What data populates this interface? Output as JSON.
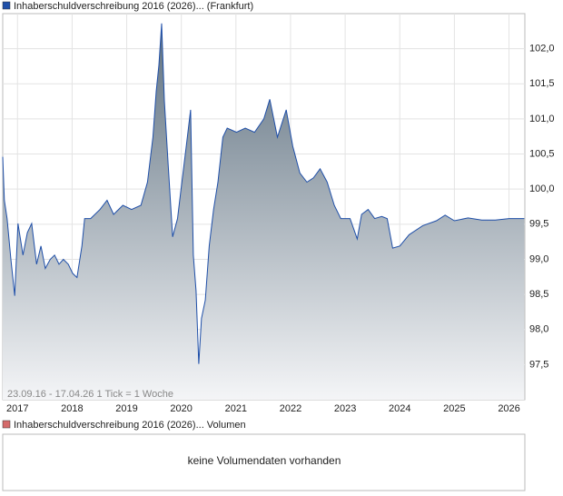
{
  "chart_data": {
    "type": "area",
    "series": [
      {
        "name": "Inhaberschuldverschreibung 2016 (2026)... (Frankfurt)",
        "color": "#1f4fa8",
        "x": [
          2016.73,
          2016.76,
          2016.81,
          2016.88,
          2016.95,
          2017.01,
          2017.1,
          2017.18,
          2017.26,
          2017.35,
          2017.43,
          2017.51,
          2017.6,
          2017.68,
          2017.76,
          2017.84,
          2017.93,
          2018.01,
          2018.09,
          2018.18,
          2018.23,
          2018.34,
          2018.51,
          2018.64,
          2018.76,
          2018.93,
          2019.09,
          2019.26,
          2019.38,
          2019.48,
          2019.54,
          2019.59,
          2019.64,
          2019.69,
          2019.76,
          2019.84,
          2019.93,
          2020.01,
          2020.09,
          2020.17,
          2020.22,
          2020.27,
          2020.32,
          2020.37,
          2020.44,
          2020.51,
          2020.59,
          2020.67,
          2020.76,
          2020.84,
          2021.01,
          2021.17,
          2021.34,
          2021.51,
          2021.62,
          2021.76,
          2021.92,
          2022.04,
          2022.17,
          2022.3,
          2022.42,
          2022.54,
          2022.67,
          2022.8,
          2022.92,
          2023.09,
          2023.22,
          2023.3,
          2023.42,
          2023.54,
          2023.67,
          2023.77,
          2023.87,
          2024.0,
          2024.17,
          2024.42,
          2024.67,
          2024.83,
          2025.0,
          2025.25,
          2025.5,
          2025.75,
          2026.0,
          2026.16,
          2026.28
        ],
        "values": [
          100.46,
          99.84,
          99.58,
          99.0,
          98.48,
          99.51,
          99.06,
          99.38,
          99.51,
          98.93,
          99.19,
          98.87,
          99.0,
          99.06,
          98.93,
          99.0,
          98.93,
          98.8,
          98.74,
          99.19,
          99.58,
          99.58,
          99.71,
          99.84,
          99.64,
          99.77,
          99.71,
          99.77,
          100.1,
          100.74,
          101.39,
          101.77,
          102.36,
          101.26,
          100.35,
          99.32,
          99.58,
          100.1,
          100.61,
          101.13,
          99.06,
          98.55,
          97.51,
          98.16,
          98.42,
          99.19,
          99.71,
          100.1,
          100.74,
          100.87,
          100.81,
          100.87,
          100.81,
          101.0,
          101.28,
          100.74,
          101.13,
          100.61,
          100.23,
          100.1,
          100.16,
          100.29,
          100.1,
          99.77,
          99.58,
          99.58,
          99.29,
          99.64,
          99.71,
          99.58,
          99.61,
          99.58,
          99.16,
          99.19,
          99.35,
          99.48,
          99.55,
          99.63,
          99.55,
          99.59,
          99.56,
          99.56,
          99.58,
          99.58,
          99.58
        ]
      }
    ],
    "xlim": [
      2016.73,
      2026.29
    ],
    "xticks": [
      2017,
      2018,
      2019,
      2020,
      2021,
      2022,
      2023,
      2024,
      2025,
      2026
    ],
    "ylim": [
      97.0,
      102.5
    ],
    "yticks": [
      {
        "value": 97.5,
        "label": "97,5"
      },
      {
        "value": 98.0,
        "label": "98,0"
      },
      {
        "value": 98.5,
        "label": "98,5"
      },
      {
        "value": 99.0,
        "label": "99,0"
      },
      {
        "value": 99.5,
        "label": "99,5"
      },
      {
        "value": 100.0,
        "label": "100,0"
      },
      {
        "value": 100.5,
        "label": "100,5"
      },
      {
        "value": 101.0,
        "label": "101,0"
      },
      {
        "value": 101.5,
        "label": "101,5"
      },
      {
        "value": 102.0,
        "label": "102,0"
      }
    ],
    "grid": true,
    "footnote": "23.09.16 - 17.04.26   1 Tick = 1 Woche"
  },
  "volume_panel": {
    "legend": "Inhaberschuldverschreibung 2016 (2026)... Volumen",
    "color": "#d46a6a",
    "message": "keine Volumendaten vorhanden"
  }
}
